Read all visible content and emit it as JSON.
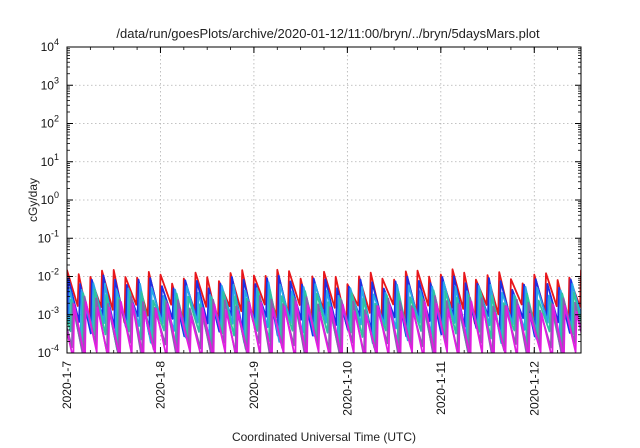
{
  "chart_data": {
    "type": "line",
    "title": "/data/run/goesPlots/archive/2020-01-12/11:00/bryn/../bryn/5daysMars.plot",
    "xlabel": "Coordinated Universal Time (UTC)",
    "ylabel": "cGy/day",
    "y_scale": "log",
    "ylim": [
      0.0001,
      10000
    ],
    "xlim": [
      "2020-01-07T00:00",
      "2020-01-12T12:00"
    ],
    "grid": true,
    "x_ticks": [
      "2020-1-7",
      "2020-1-8",
      "2020-1-9",
      "2020-1-10",
      "2020-1-11",
      "2020-1-12"
    ],
    "y_ticks": [
      {
        "value": 0.0001,
        "base": "10",
        "exp": "-4"
      },
      {
        "value": 0.001,
        "base": "10",
        "exp": "-3"
      },
      {
        "value": 0.01,
        "base": "10",
        "exp": "-2"
      },
      {
        "value": 0.1,
        "base": "10",
        "exp": "-1"
      },
      {
        "value": 1,
        "base": "10",
        "exp": "0"
      },
      {
        "value": 10,
        "base": "10",
        "exp": "1"
      },
      {
        "value": 100,
        "base": "10",
        "exp": "2"
      },
      {
        "value": 1000,
        "base": "10",
        "exp": "3"
      },
      {
        "value": 10000,
        "base": "10",
        "exp": "4"
      }
    ],
    "sawtooth_period_hours": 3,
    "series": [
      {
        "color": "#e8161b",
        "peak": 0.011,
        "trough": 0.0012,
        "phase": 0.0
      },
      {
        "color": "#1b2fe6",
        "peak": 0.0075,
        "trough": 0.0006,
        "phase": 0.12
      },
      {
        "color": "#27a6e8",
        "peak": 0.005,
        "trough": 0.0004,
        "phase": 0.25
      },
      {
        "color": "#2ec4a0",
        "peak": 0.0032,
        "trough": 0.00025,
        "phase": 0.38
      },
      {
        "color": "#8a5fb0",
        "peak": 0.0022,
        "trough": 0.00012,
        "phase": 0.5
      },
      {
        "color": "#e11de0",
        "peak": 0.0016,
        "trough": 7e-05,
        "phase": 0.62
      }
    ]
  }
}
